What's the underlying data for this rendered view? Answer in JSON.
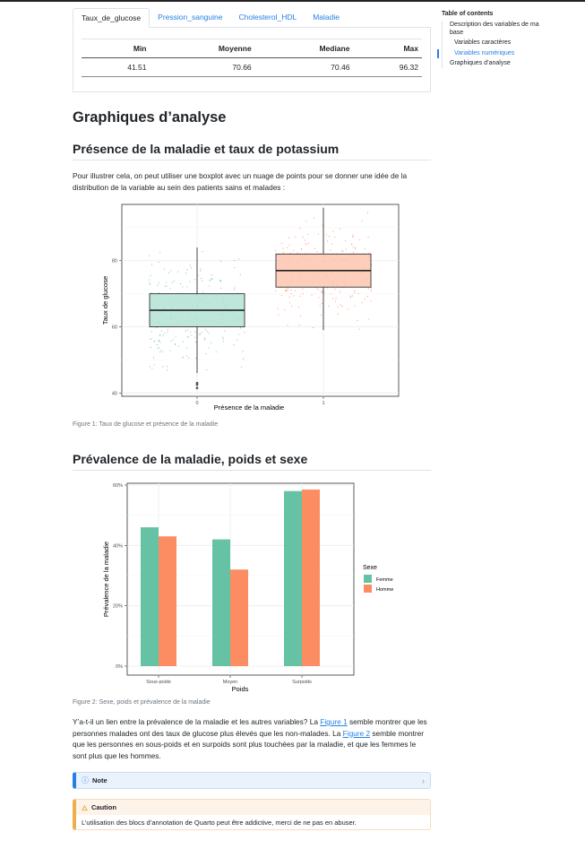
{
  "tabs": [
    "Taux_de_glucose",
    "Pression_sanguine",
    "Cholesterol_HDL",
    "Maladie"
  ],
  "active_tab": "Taux_de_glucose",
  "stats_table": {
    "headers": [
      "Min",
      "Moyenne",
      "Mediane",
      "Max"
    ],
    "row": [
      "41.51",
      "70.66",
      "70.46",
      "96.32"
    ]
  },
  "toc": {
    "title": "Table of contents",
    "items": [
      {
        "label": "Description des variables de ma base"
      },
      {
        "label": "Variables caractères"
      },
      {
        "label": "Variables numériques"
      },
      {
        "label": "Graphiques d’analyse"
      }
    ]
  },
  "section_title": "Graphiques d’analyse",
  "sub1": {
    "title": "Présence de la maladie et taux de potassium",
    "intro": "Pour illustrer cela, on peut utiliser une boxplot avec un nuage de points pour se donner une idée de la distribution de la variable au sein des patients sains et malades :",
    "caption": "Figure 1: Taux de glucose et présence de la maladie"
  },
  "sub2": {
    "title": "Prévalence de la maladie, poids et sexe",
    "caption": "Figure 2: Sexe, poids et prévalence de la maladie",
    "text_before_link1": "Y’a-t-il un lien entre la prévalence de la maladie et les autres variables? La ",
    "link1": "Figure 1",
    "text_between": " semble montrer que les personnes malades ont des taux de glucose plus élevés que les non-malades. La ",
    "link2": "Figure 2",
    "text_after": " semble montrer que les personnes en sous-poids et en surpoids sont plus touchées par la maladie, et que les femmes le sont plus que les hommes."
  },
  "note": {
    "icon": "info-icon",
    "title": "Note"
  },
  "caution": {
    "icon": "flame-icon",
    "title": "Caution",
    "body": "L’utilisation des blocs d’annotation de Quarto peut être addictive, merci de ne pas en abuser."
  },
  "chart_data": [
    {
      "type": "boxplot",
      "xlabel": "Présence de la maladie",
      "ylabel": "Taux de glucose",
      "categories": [
        "0",
        "1"
      ],
      "y_ticks": [
        40,
        60,
        80
      ],
      "ylim": [
        39,
        97
      ],
      "groups": [
        {
          "category": "0",
          "color": "#66c2a5",
          "fill": "#b3e2d3",
          "min": 46,
          "q1": 60,
          "median": 65,
          "q3": 70,
          "max": 84,
          "outliers": [
            43,
            42.5,
            41.5
          ]
        },
        {
          "category": "1",
          "color": "#fc8d62",
          "fill": "#fdc6b0",
          "min": 59,
          "q1": 72,
          "median": 77,
          "q3": 82,
          "max": 96,
          "outliers": []
        }
      ],
      "grid": true
    },
    {
      "type": "bar",
      "xlabel": "Poids",
      "ylabel": "Prévalence de la maladie",
      "categories": [
        "Sous-poids",
        "Moyen",
        "Surpoids"
      ],
      "y_ticks": [
        "0%",
        "20%",
        "40%",
        "60%"
      ],
      "ylim": [
        0,
        0.6
      ],
      "legend_title": "Sexe",
      "legend_position": "right",
      "series": [
        {
          "name": "Femme",
          "color": "#66c2a5",
          "values": [
            0.46,
            0.42,
            0.58
          ]
        },
        {
          "name": "Homme",
          "color": "#fc8d62",
          "values": [
            0.43,
            0.32,
            0.585
          ]
        }
      ],
      "grid": true
    }
  ]
}
